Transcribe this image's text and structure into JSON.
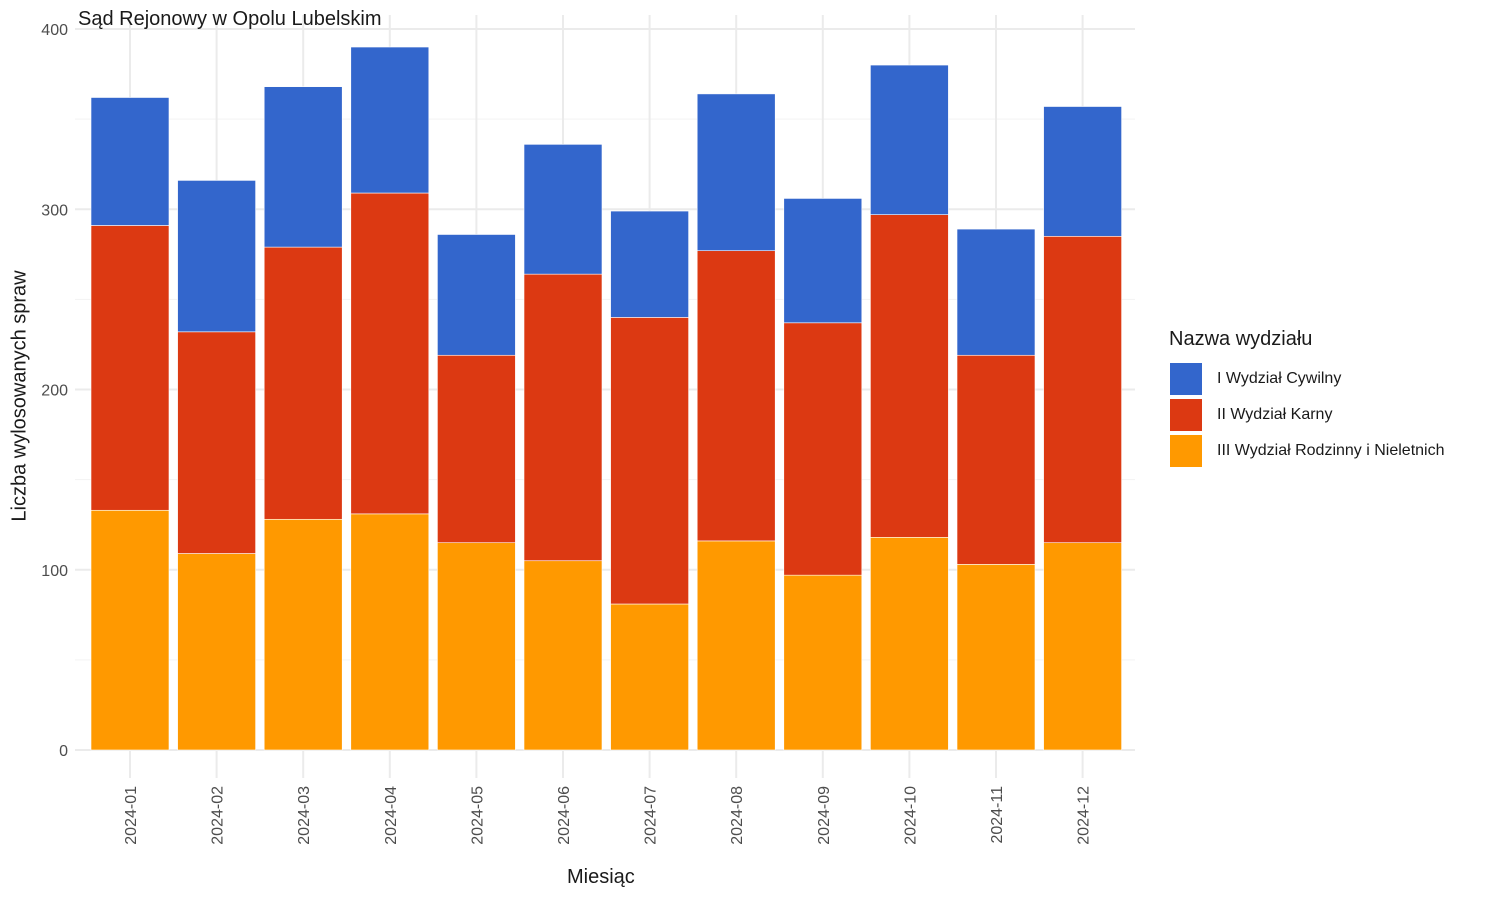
{
  "chart_data": {
    "type": "bar",
    "stacked": true,
    "title": "Sąd Rejonowy w Opolu Lubelskim",
    "xlabel": "Miesiąc",
    "ylabel": "Liczba wylosowanych spraw",
    "ylim": [
      0,
      400
    ],
    "yticks": [
      0,
      100,
      200,
      300,
      400
    ],
    "grid": true,
    "legend_placement": "right",
    "legend_title": "Nazwa wydziału",
    "categories": [
      "2024-01",
      "2024-02",
      "2024-03",
      "2024-04",
      "2024-05",
      "2024-06",
      "2024-07",
      "2024-08",
      "2024-09",
      "2024-10",
      "2024-11",
      "2024-12"
    ],
    "series": [
      {
        "name": "III Wydział Rodzinny i Nieletnich",
        "color": "#FF9900",
        "values": [
          133,
          109,
          128,
          131,
          115,
          105,
          81,
          116,
          97,
          118,
          103,
          115
        ]
      },
      {
        "name": "II Wydział Karny",
        "color": "#DC3912",
        "values": [
          158,
          123,
          151,
          178,
          104,
          159,
          159,
          161,
          140,
          179,
          116,
          170
        ]
      },
      {
        "name": "I Wydział Cywilny",
        "color": "#3366CC",
        "values": [
          71,
          84,
          89,
          81,
          67,
          72,
          59,
          87,
          69,
          83,
          70,
          72
        ]
      }
    ],
    "legend_order": [
      2,
      1,
      0
    ]
  }
}
